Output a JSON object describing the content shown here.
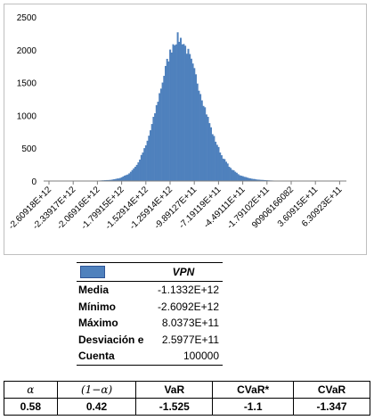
{
  "chart_data": {
    "type": "bar",
    "title": "",
    "xlabel": "",
    "ylabel": "",
    "ylim": [
      0,
      2500
    ],
    "y_ticks": [
      0,
      500,
      1000,
      1500,
      2000,
      2500
    ],
    "x_tick_labels": [
      "-2.60918E+12",
      "-2.33917E+12",
      "-2.06916E+12",
      "-1.79915E+12",
      "-1.52914E+12",
      "-1.25914E+12",
      "-9.89127E+11",
      "-7.19119E+11",
      "-4.49111E+11",
      "-1.79102E+11",
      "90906166082",
      "3.60915E+11",
      "6.30923E+11"
    ],
    "bin_start": -2609180000000.0,
    "bin_end": 803730000000.0,
    "bin_count": 200,
    "bar_color": "#4f81bd",
    "distribution_estimate": {
      "peak_count": 2180,
      "peak_x": -1100000000000.0,
      "points": [
        [
          -2609180000000.0,
          0
        ],
        [
          -2200000000000.0,
          2
        ],
        [
          -2000000000000.0,
          6
        ],
        [
          -1850000000000.0,
          18
        ],
        [
          -1750000000000.0,
          45
        ],
        [
          -1650000000000.0,
          110
        ],
        [
          -1550000000000.0,
          260
        ],
        [
          -1450000000000.0,
          560
        ],
        [
          -1380000000000.0,
          900
        ],
        [
          -1300000000000.0,
          1350
        ],
        [
          -1220000000000.0,
          1800
        ],
        [
          -1150000000000.0,
          2100
        ],
        [
          -1100000000000.0,
          2180
        ],
        [
          -1050000000000.0,
          2150
        ],
        [
          -980000000000.0,
          1950
        ],
        [
          -900000000000.0,
          1620
        ],
        [
          -800000000000.0,
          1150
        ],
        [
          -700000000000.0,
          700
        ],
        [
          -600000000000.0,
          380
        ],
        [
          -500000000000.0,
          190
        ],
        [
          -400000000000.0,
          90
        ],
        [
          -300000000000.0,
          45
        ],
        [
          -200000000000.0,
          22
        ],
        [
          -100000000000.0,
          12
        ],
        [
          0,
          6
        ],
        [
          200000000000.0,
          3
        ],
        [
          400000000000.0,
          1
        ],
        [
          803730000000.0,
          0
        ]
      ]
    }
  },
  "stats": {
    "header": "VPN",
    "rows": [
      {
        "label": "Media",
        "value": "-1.1332E+12"
      },
      {
        "label": "Mínimo",
        "value": "-2.6092E+12"
      },
      {
        "label": "Máximo",
        "value": "8.0373E+11"
      },
      {
        "label": "Desviación e",
        "value": "2.5977E+11"
      },
      {
        "label": "Cuenta",
        "value": "100000"
      }
    ],
    "swatch_color": "#4f81bd"
  },
  "risk_table": {
    "headers": [
      "α",
      "(1−α)",
      "VaR",
      "CVaR*",
      "CVaR"
    ],
    "values": [
      "0.58",
      "0.42",
      "-1.525",
      "-1.1",
      "-1.347"
    ]
  }
}
